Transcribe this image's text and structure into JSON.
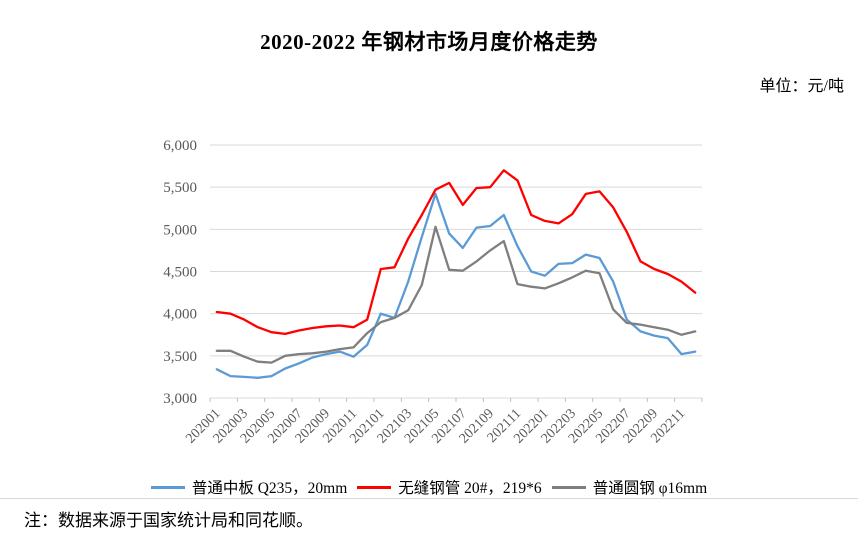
{
  "title": "2020-2022 年钢材市场月度价格走势",
  "unit_label": "单位：元/吨",
  "note": "注：数据来源于国家统计局和同花顺。",
  "colors": {
    "grid": "#d9d9d9",
    "tick": "#bfbfbf",
    "axis_text": "#595959"
  },
  "chart_data": {
    "type": "line",
    "title": "2020-2022 年钢材市场月度价格走势",
    "ylabel": "元/吨",
    "xlabel": "",
    "grid": true,
    "legend_position": "bottom",
    "ylim": [
      3000,
      6000
    ],
    "y_ticks": [
      3000,
      3500,
      4000,
      4500,
      5000,
      5500,
      6000
    ],
    "y_tick_labels": [
      "3,000",
      "3,500",
      "4,000",
      "4,500",
      "5,000",
      "5,500",
      "6,000"
    ],
    "x": [
      "202001",
      "202002",
      "202003",
      "202004",
      "202005",
      "202006",
      "202007",
      "202008",
      "202009",
      "202010",
      "202011",
      "202012",
      "202101",
      "202102",
      "202103",
      "202104",
      "202105",
      "202106",
      "202107",
      "202108",
      "202109",
      "202110",
      "202111",
      "202112",
      "202201",
      "202202",
      "202203",
      "202204",
      "202205",
      "202206",
      "202207",
      "202208",
      "202209",
      "202210",
      "202211",
      "202212"
    ],
    "x_tick_labels": [
      "202001",
      "202003",
      "202005",
      "202007",
      "202009",
      "202011",
      "202101",
      "202103",
      "202105",
      "202107",
      "202109",
      "202111",
      "202201",
      "202203",
      "202205",
      "202207",
      "202209",
      "202211"
    ],
    "series": [
      {
        "name": "普通中板 Q235，20mm",
        "color": "#5B9BD5",
        "values": [
          3340,
          3260,
          3250,
          3240,
          3260,
          3350,
          3410,
          3480,
          3520,
          3550,
          3490,
          3630,
          4000,
          3950,
          4380,
          4910,
          5420,
          4950,
          4780,
          5020,
          5040,
          5170,
          4800,
          4500,
          4450,
          4590,
          4600,
          4700,
          4660,
          4380,
          3930,
          3790,
          3740,
          3710,
          3520,
          3550
        ]
      },
      {
        "name": "无缝钢管 20#，219*6",
        "color": "#FF0000",
        "values": [
          4020,
          4000,
          3930,
          3840,
          3780,
          3760,
          3800,
          3830,
          3850,
          3860,
          3840,
          3930,
          4530,
          4550,
          4890,
          5170,
          5470,
          5550,
          5290,
          5490,
          5500,
          5700,
          5580,
          5170,
          5100,
          5070,
          5180,
          5420,
          5450,
          5260,
          4970,
          4620,
          4530,
          4470,
          4380,
          4250
        ]
      },
      {
        "name": "普通圆钢 φ16mm",
        "color": "#7F7F7F",
        "values": [
          3560,
          3560,
          3490,
          3430,
          3420,
          3500,
          3520,
          3530,
          3550,
          3580,
          3600,
          3770,
          3900,
          3950,
          4040,
          4340,
          5030,
          4520,
          4510,
          4620,
          4750,
          4860,
          4350,
          4320,
          4300,
          4360,
          4430,
          4510,
          4480,
          4050,
          3890,
          3870,
          3840,
          3810,
          3750,
          3790
        ]
      }
    ]
  }
}
